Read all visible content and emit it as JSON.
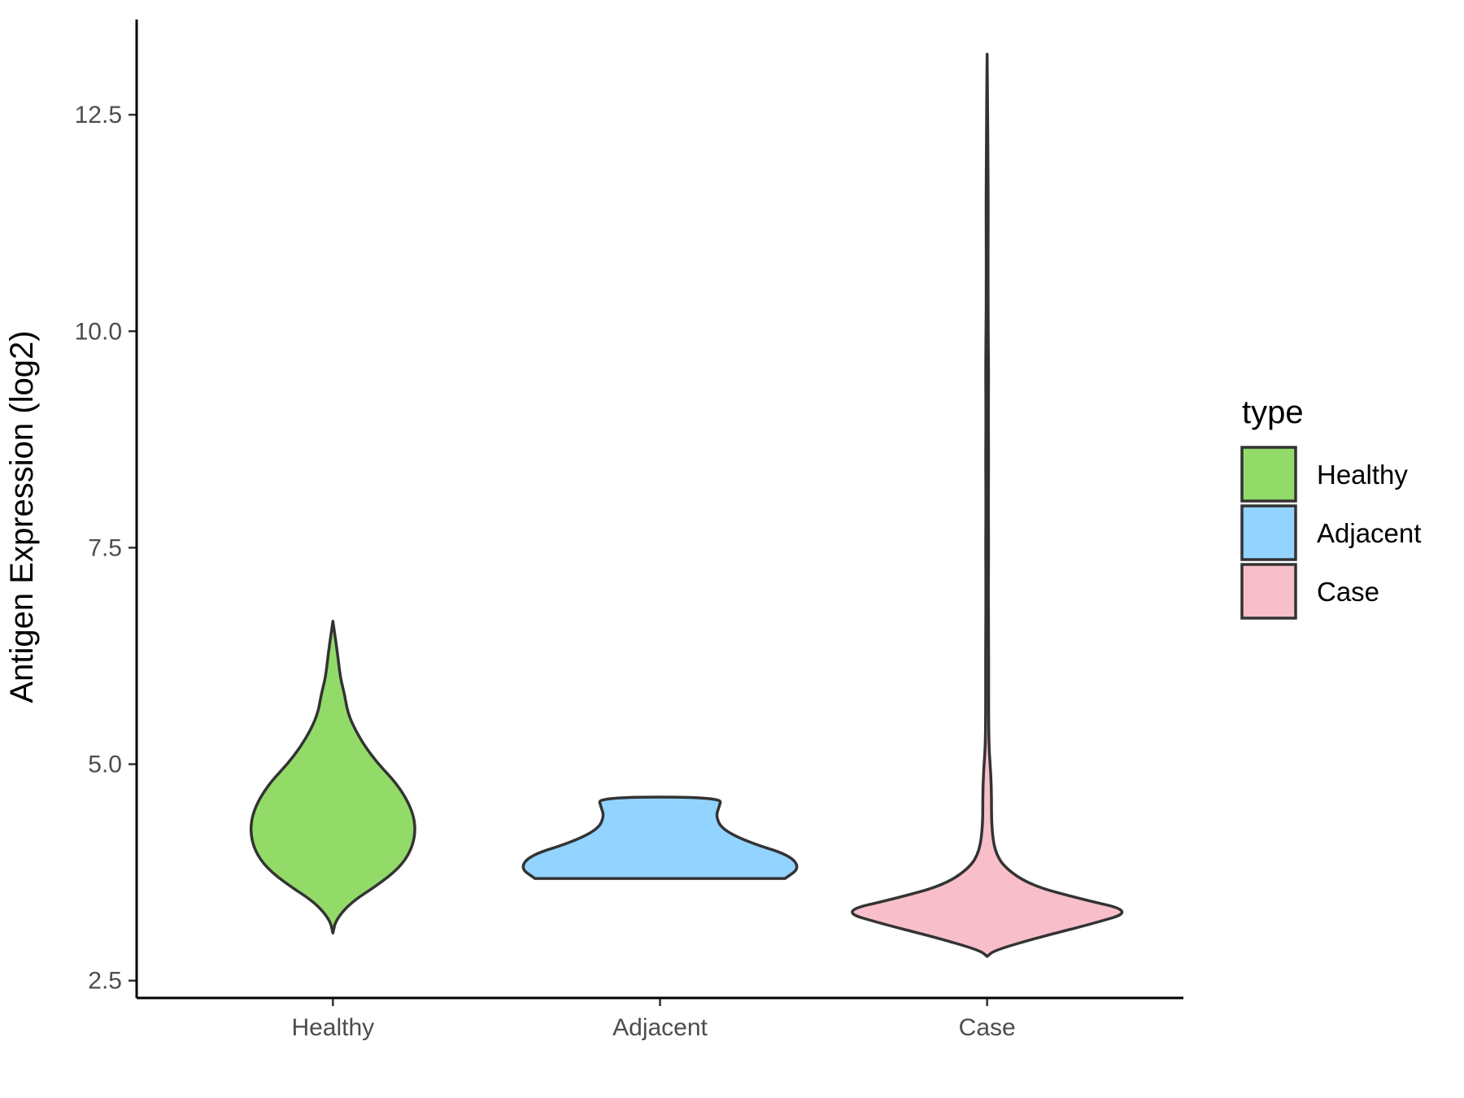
{
  "chart_data": {
    "type": "violin",
    "categories": [
      "Healthy",
      "Adjacent",
      "Case"
    ],
    "ylabel": "Antigen Expression (log2)",
    "xlabel": "",
    "ylim": [
      2.3,
      13.6
    ],
    "yticks": [
      2.5,
      5.0,
      7.5,
      10.0,
      12.5
    ],
    "ytick_labels": [
      "2.5",
      "5.0",
      "7.5",
      "10.0",
      "12.5"
    ],
    "grid": false,
    "legend": {
      "title": "type",
      "position": "right",
      "entries": [
        {
          "label": "Healthy",
          "color": "#93DB69"
        },
        {
          "label": "Adjacent",
          "color": "#93D3FF"
        },
        {
          "label": "Case",
          "color": "#F8BFCA"
        }
      ]
    },
    "series": [
      {
        "category": "Healthy",
        "color": "#93DB69",
        "density": [
          [
            3.05,
            0.0
          ],
          [
            3.2,
            0.02
          ],
          [
            3.4,
            0.12
          ],
          [
            3.6,
            0.3
          ],
          [
            3.8,
            0.45
          ],
          [
            4.0,
            0.53
          ],
          [
            4.2,
            0.56
          ],
          [
            4.4,
            0.55
          ],
          [
            4.6,
            0.5
          ],
          [
            4.8,
            0.42
          ],
          [
            5.0,
            0.31
          ],
          [
            5.2,
            0.22
          ],
          [
            5.4,
            0.15
          ],
          [
            5.6,
            0.1
          ],
          [
            5.8,
            0.08
          ],
          [
            6.0,
            0.05
          ],
          [
            6.3,
            0.03
          ],
          [
            6.65,
            0.0
          ]
        ]
      },
      {
        "category": "Adjacent",
        "color": "#93D3FF",
        "density": [
          [
            3.68,
            0.85
          ],
          [
            3.8,
            0.95
          ],
          [
            3.95,
            0.88
          ],
          [
            4.1,
            0.6
          ],
          [
            4.25,
            0.42
          ],
          [
            4.4,
            0.38
          ],
          [
            4.5,
            0.4
          ],
          [
            4.62,
            0.42
          ]
        ]
      },
      {
        "category": "Case",
        "color": "#F8BFCA",
        "density": [
          [
            2.78,
            0.0
          ],
          [
            2.85,
            0.05
          ],
          [
            3.0,
            0.35
          ],
          [
            3.15,
            0.7
          ],
          [
            3.3,
            1.0
          ],
          [
            3.45,
            0.62
          ],
          [
            3.6,
            0.3
          ],
          [
            3.8,
            0.12
          ],
          [
            4.0,
            0.05
          ],
          [
            4.3,
            0.03
          ],
          [
            4.6,
            0.03
          ],
          [
            4.9,
            0.025
          ],
          [
            5.2,
            0.012
          ],
          [
            5.6,
            0.01
          ],
          [
            6.0,
            0.01
          ],
          [
            6.5,
            0.01
          ],
          [
            7.0,
            0.008
          ],
          [
            7.5,
            0.01
          ],
          [
            8.0,
            0.008
          ],
          [
            8.5,
            0.01
          ],
          [
            9.0,
            0.008
          ],
          [
            9.5,
            0.01
          ],
          [
            10.0,
            0.007
          ],
          [
            10.5,
            0.006
          ],
          [
            11.0,
            0.006
          ],
          [
            11.5,
            0.007
          ],
          [
            12.0,
            0.005
          ],
          [
            12.5,
            0.004
          ],
          [
            13.2,
            0.0
          ]
        ]
      }
    ]
  }
}
